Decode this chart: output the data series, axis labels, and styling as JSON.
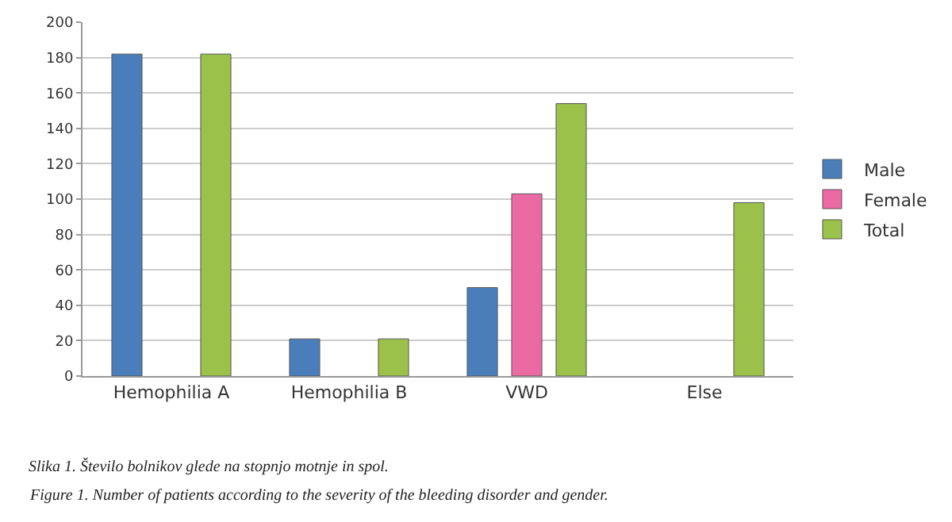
{
  "chart_data": {
    "type": "bar",
    "categories": [
      "Hemophilia A",
      "Hemophilia B",
      "VWD",
      "Else"
    ],
    "series": [
      {
        "name": "Male",
        "color": "#4a7ebb",
        "values": [
          182,
          21,
          50,
          null
        ]
      },
      {
        "name": "Female",
        "color": "#ec6aa4",
        "values": [
          null,
          null,
          103,
          null
        ]
      },
      {
        "name": "Total",
        "color": "#9bc14a",
        "values": [
          182,
          21,
          154,
          98
        ]
      }
    ],
    "ylim": [
      0,
      200
    ],
    "yticks": [
      0,
      20,
      40,
      60,
      80,
      100,
      120,
      140,
      160,
      180,
      200
    ],
    "grid": "y",
    "legend": "right",
    "annotations": [
      "Slika 1. Število bolnikov glede na stopnjo motnje in spol.",
      "Figure 1. Number of patients according to the severity of the bleeding disorder and gender."
    ]
  }
}
